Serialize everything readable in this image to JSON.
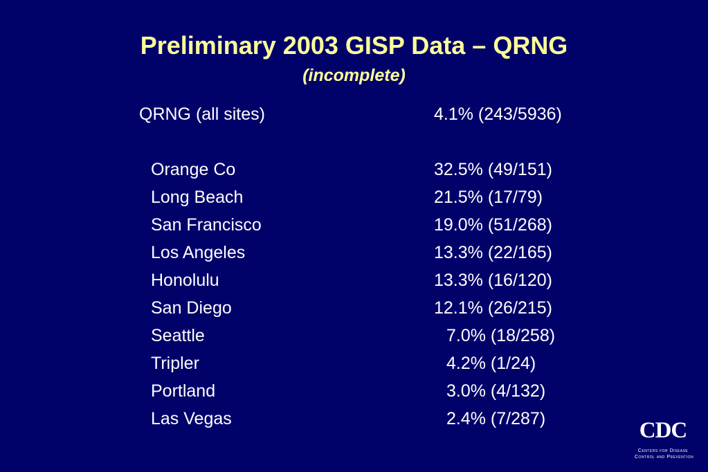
{
  "slide": {
    "title": "Preliminary 2003 GISP Data – QRNG",
    "subtitle": "(incomplete)",
    "summary": {
      "label": "QRNG (all sites)",
      "value": "4.1% (243/5936)"
    },
    "sites": [
      {
        "label": "Orange Co",
        "value": "32.5% (49/151)"
      },
      {
        "label": "Long Beach",
        "value": "21.5% (17/79)"
      },
      {
        "label": "San Francisco",
        "value": "19.0% (51/268)"
      },
      {
        "label": "Los Angeles",
        "value": "13.3% (22/165)"
      },
      {
        "label": "Honolulu",
        "value": "13.3% (16/120)"
      },
      {
        "label": "San Diego",
        "value": "12.1% (26/215)"
      },
      {
        "label": "Seattle",
        "value": "7.0% (18/258)"
      },
      {
        "label": "Tripler",
        "value": "4.2% (1/24)"
      },
      {
        "label": "Portland",
        "value": "3.0% (4/132)"
      },
      {
        "label": "Las Vegas",
        "value": "2.4% (7/287)"
      }
    ]
  },
  "logo": {
    "text": "CDC",
    "line1": "Centers for Disease",
    "line2": "Control and Prevention"
  },
  "colors": {
    "background": "#01016a",
    "title": "#ffff99",
    "body_text": "#ffffff"
  }
}
